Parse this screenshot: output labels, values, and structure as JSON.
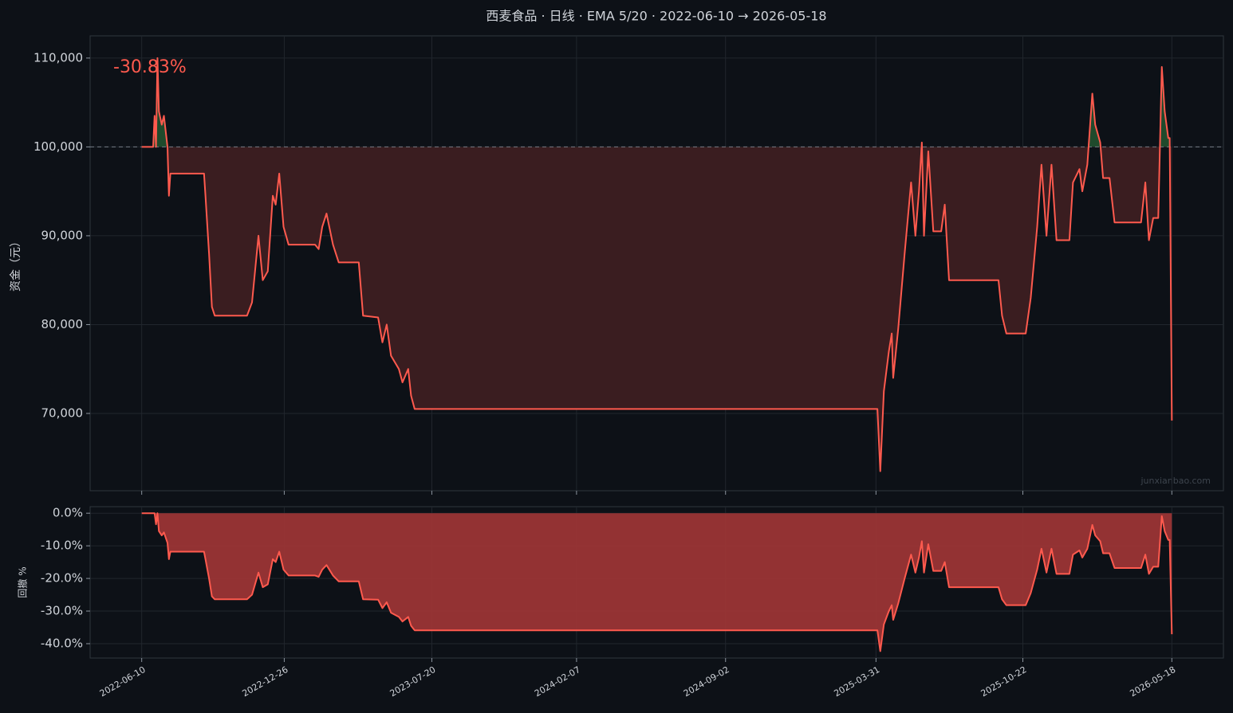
{
  "chart_data": [
    {
      "type": "line",
      "title": "西麦食品 · 日线 · EMA 5/20 · 2022-06-10 → 2026-05-18",
      "y_label": "资金（元）",
      "annotation": "-30.83%",
      "watermark": "junxianbao.com",
      "x": [
        "2022-06-10",
        "2022-06-26",
        "2022-06-28",
        "2022-06-30",
        "2022-07-02",
        "2022-07-04",
        "2022-07-08",
        "2022-07-11",
        "2022-07-16",
        "2022-07-18",
        "2022-07-20",
        "2022-09-05",
        "2022-09-07",
        "2022-09-12",
        "2022-09-16",
        "2022-09-20",
        "2022-11-04",
        "2022-11-11",
        "2022-11-20",
        "2022-11-26",
        "2022-12-03",
        "2022-12-10",
        "2022-12-14",
        "2022-12-19",
        "2022-12-25",
        "2023-01-01",
        "2023-02-07",
        "2023-02-12",
        "2023-02-17",
        "2023-02-23",
        "2023-03-04",
        "2023-03-12",
        "2023-04-09",
        "2023-04-15",
        "2023-05-06",
        "2023-05-12",
        "2023-05-18",
        "2023-05-24",
        "2023-06-04",
        "2023-06-09",
        "2023-06-17",
        "2023-06-21",
        "2023-06-26",
        "2025-04-02",
        "2025-04-06",
        "2025-04-11",
        "2025-04-18",
        "2025-04-22",
        "2025-04-24",
        "2025-05-01",
        "2025-05-10",
        "2025-05-19",
        "2025-05-25",
        "2025-05-30",
        "2025-06-03",
        "2025-06-06",
        "2025-06-12",
        "2025-06-19",
        "2025-06-30",
        "2025-07-05",
        "2025-07-11",
        "2025-09-18",
        "2025-09-23",
        "2025-09-29",
        "2025-10-26",
        "2025-11-02",
        "2025-11-11",
        "2025-11-17",
        "2025-11-24",
        "2025-12-01",
        "2025-12-08",
        "2025-12-26",
        "2025-12-31",
        "2026-01-09",
        "2026-01-13",
        "2026-01-20",
        "2026-01-27",
        "2026-01-31",
        "2026-02-07",
        "2026-02-11",
        "2026-02-20",
        "2026-02-27",
        "2026-04-05",
        "2026-04-11",
        "2026-04-16",
        "2026-04-22",
        "2026-04-29",
        "2026-05-04",
        "2026-05-08",
        "2026-05-13",
        "2026-05-15",
        "2026-05-18"
      ],
      "series": [
        {
          "name": "资金",
          "color": "#ff5a4e",
          "values": [
            100000,
            100000,
            103500,
            100000,
            110000,
            104000,
            102500,
            103500,
            100000,
            94500,
            97000,
            97000,
            94500,
            88000,
            82000,
            81000,
            81000,
            82500,
            90000,
            85000,
            86000,
            94500,
            93500,
            97000,
            91000,
            89000,
            89000,
            88500,
            91000,
            92500,
            89000,
            87000,
            87000,
            81000,
            80800,
            78000,
            80000,
            76500,
            75000,
            73500,
            75000,
            72000,
            70500,
            70500,
            63500,
            72500,
            77000,
            79000,
            74000,
            79500,
            88000,
            96000,
            90000,
            95000,
            100500,
            90000,
            99500,
            90500,
            90500,
            93500,
            85000,
            85000,
            81000,
            79000,
            79000,
            83000,
            91000,
            98000,
            90000,
            98000,
            89500,
            89500,
            96000,
            97500,
            95000,
            98000,
            106000,
            102500,
            100500,
            96500,
            96500,
            91500,
            91500,
            96000,
            89500,
            92000,
            92000,
            109000,
            104000,
            101000,
            101000,
            69200
          ]
        }
      ],
      "reference_line": 100000,
      "above_color": "#1f4a2c",
      "below_color": "#3a1d20",
      "xlim": [
        "2022-03-30",
        "2026-07-29"
      ],
      "xticks": [
        "2022-06-10",
        "2022-12-26",
        "2023-07-20",
        "2024-02-07",
        "2024-09-02",
        "2025-03-31",
        "2025-10-22",
        "2026-05-18"
      ],
      "ylim": [
        61300,
        112500
      ],
      "yticks": [
        {
          "value": 70000,
          "label": "70,000"
        },
        {
          "value": 80000,
          "label": "80,000"
        },
        {
          "value": 90000,
          "label": "90,000"
        },
        {
          "value": 100000,
          "label": "100,000"
        },
        {
          "value": 110000,
          "label": "110,000"
        }
      ],
      "grid": true
    },
    {
      "type": "area",
      "y_label": "回撤 %",
      "x": [
        "2022-06-10",
        "2022-06-26",
        "2022-06-28",
        "2022-06-30",
        "2022-07-02",
        "2022-07-04",
        "2022-07-08",
        "2022-07-11",
        "2022-07-16",
        "2022-07-18",
        "2022-07-20",
        "2022-09-05",
        "2022-09-07",
        "2022-09-12",
        "2022-09-16",
        "2022-09-20",
        "2022-11-04",
        "2022-11-11",
        "2022-11-20",
        "2022-11-26",
        "2022-12-03",
        "2022-12-10",
        "2022-12-14",
        "2022-12-19",
        "2022-12-25",
        "2023-01-01",
        "2023-02-07",
        "2023-02-12",
        "2023-02-17",
        "2023-02-23",
        "2023-03-04",
        "2023-03-12",
        "2023-04-09",
        "2023-04-15",
        "2023-05-06",
        "2023-05-12",
        "2023-05-18",
        "2023-05-24",
        "2023-06-04",
        "2023-06-09",
        "2023-06-17",
        "2023-06-21",
        "2023-06-26",
        "2025-04-02",
        "2025-04-06",
        "2025-04-11",
        "2025-04-18",
        "2025-04-22",
        "2025-04-24",
        "2025-05-01",
        "2025-05-10",
        "2025-05-19",
        "2025-05-25",
        "2025-05-30",
        "2025-06-03",
        "2025-06-06",
        "2025-06-12",
        "2025-06-19",
        "2025-06-30",
        "2025-07-05",
        "2025-07-11",
        "2025-09-18",
        "2025-09-23",
        "2025-09-29",
        "2025-10-26",
        "2025-11-02",
        "2025-11-11",
        "2025-11-17",
        "2025-11-24",
        "2025-12-01",
        "2025-12-08",
        "2025-12-26",
        "2025-12-31",
        "2026-01-09",
        "2026-01-13",
        "2026-01-20",
        "2026-01-27",
        "2026-01-31",
        "2026-02-07",
        "2026-02-11",
        "2026-02-20",
        "2026-02-27",
        "2026-04-05",
        "2026-04-11",
        "2026-04-16",
        "2026-04-22",
        "2026-04-29",
        "2026-05-04",
        "2026-05-08",
        "2026-05-13",
        "2026-05-15",
        "2026-05-18"
      ],
      "series": [
        {
          "name": "回撤",
          "color": "#ff5a4e",
          "fill": "#9b3535",
          "values": [
            0,
            0,
            0,
            -3.4,
            0,
            -5.5,
            -6.8,
            -5.9,
            -9.1,
            -14.1,
            -11.8,
            -11.8,
            -14.1,
            -20.0,
            -25.5,
            -26.4,
            -26.4,
            -25.0,
            -18.2,
            -22.7,
            -21.8,
            -14.1,
            -15.0,
            -11.8,
            -17.3,
            -19.1,
            -19.1,
            -19.5,
            -17.3,
            -15.9,
            -19.1,
            -20.9,
            -20.9,
            -26.4,
            -26.5,
            -29.1,
            -27.3,
            -30.5,
            -31.8,
            -33.2,
            -31.8,
            -34.5,
            -35.9,
            -35.9,
            -42.3,
            -34.1,
            -30.0,
            -28.2,
            -32.7,
            -27.7,
            -20.0,
            -12.7,
            -18.2,
            -13.6,
            -8.6,
            -18.2,
            -9.5,
            -17.7,
            -17.7,
            -15.0,
            -22.7,
            -22.7,
            -26.4,
            -28.2,
            -28.2,
            -24.5,
            -17.3,
            -10.9,
            -18.2,
            -10.9,
            -18.6,
            -18.6,
            -12.7,
            -11.4,
            -13.6,
            -10.9,
            -3.6,
            -6.8,
            -8.6,
            -12.3,
            -12.3,
            -16.8,
            -16.8,
            -12.7,
            -18.6,
            -16.4,
            -16.4,
            -0.9,
            -5.5,
            -8.2,
            -8.2,
            -37.1
          ]
        }
      ],
      "xlim": [
        "2022-03-30",
        "2026-07-29"
      ],
      "xticks": [
        "2022-06-10",
        "2022-12-26",
        "2023-07-20",
        "2024-02-07",
        "2024-09-02",
        "2025-03-31",
        "2025-10-22",
        "2026-05-18"
      ],
      "ylim": [
        -44.4,
        2
      ],
      "yticks": [
        {
          "value": -40,
          "label": "-40.0%"
        },
        {
          "value": -30,
          "label": "-30.0%"
        },
        {
          "value": -20,
          "label": "-20.0%"
        },
        {
          "value": -10,
          "label": "-10.0%"
        },
        {
          "value": 0,
          "label": "0.0%"
        }
      ],
      "grid": true
    }
  ]
}
